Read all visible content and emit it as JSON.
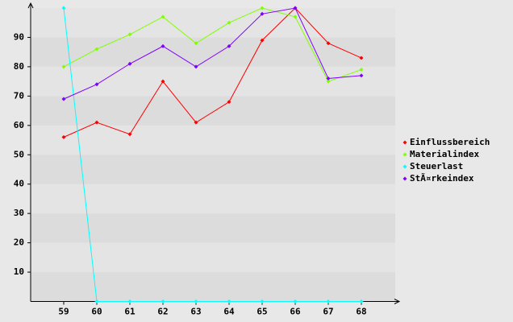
{
  "chart_data": {
    "type": "line",
    "x": [
      59,
      60,
      61,
      62,
      63,
      64,
      65,
      66,
      67,
      68
    ],
    "xlim": [
      58,
      69
    ],
    "xticks": [
      59,
      60,
      61,
      62,
      63,
      64,
      65,
      66,
      67,
      68
    ],
    "ylim": [
      0,
      100
    ],
    "yticks": [
      10,
      20,
      30,
      40,
      50,
      60,
      70,
      80,
      90
    ],
    "grid": true,
    "legend": "right",
    "series": [
      {
        "name": "Einflussbereich",
        "color": "#ff0000",
        "values": [
          56,
          61,
          57,
          75,
          61,
          68,
          89,
          100,
          88,
          83
        ]
      },
      {
        "name": "Materialindex",
        "color": "#80ff00",
        "values": [
          80,
          86,
          91,
          97,
          88,
          95,
          100,
          97,
          75,
          79
        ]
      },
      {
        "name": "Steuerlast",
        "color": "#00ffff",
        "values": [
          100,
          0,
          0,
          0,
          0,
          0,
          0,
          0,
          0,
          0
        ]
      },
      {
        "name": "StÃ¤rkeindex",
        "color": "#8000ff",
        "values": [
          69,
          74,
          81,
          87,
          80,
          87,
          98,
          100,
          76,
          77
        ]
      }
    ]
  }
}
